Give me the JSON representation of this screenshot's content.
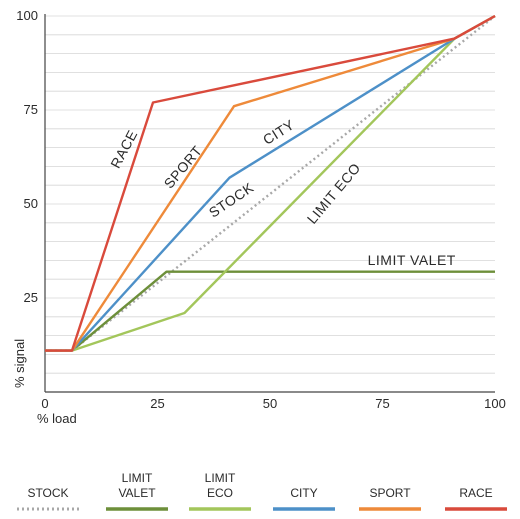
{
  "chart_data": {
    "type": "line",
    "xlabel": "% load",
    "ylabel": "% signal",
    "xlim": [
      0,
      100
    ],
    "ylim": [
      0,
      100
    ],
    "x_ticks": [
      0,
      25,
      50,
      75,
      100
    ],
    "x_tick_labels": [
      "0",
      "25",
      "50",
      "75",
      "100"
    ],
    "y_ticks": [
      25,
      50,
      75,
      100
    ],
    "y_tick_labels": [
      "25",
      "50",
      "75",
      "100"
    ],
    "grid": true,
    "legend_position": "bottom",
    "series": [
      {
        "name": "STOCK",
        "legend_label": "STOCK",
        "color": "#a8a8a8",
        "dash": "dotted",
        "curve_label": "",
        "points": [
          [
            0,
            11
          ],
          [
            6,
            11
          ],
          [
            100,
            100
          ]
        ]
      },
      {
        "name": "LIMIT VALET",
        "legend_label": "LIMIT\nVALET",
        "color": "#6d8f3a",
        "dash": "solid",
        "curve_label": "LIMIT VALET",
        "points": [
          [
            0,
            11
          ],
          [
            6,
            11
          ],
          [
            27,
            32
          ],
          [
            100,
            32
          ]
        ]
      },
      {
        "name": "LIMIT ECO",
        "legend_label": "LIMIT\nECO",
        "color": "#a3c65b",
        "dash": "solid",
        "curve_label": "LIMIT ECO",
        "points": [
          [
            0,
            11
          ],
          [
            6,
            11
          ],
          [
            31,
            21
          ],
          [
            91,
            94
          ],
          [
            100,
            100
          ]
        ]
      },
      {
        "name": "CITY",
        "legend_label": "CITY",
        "color": "#4d90c8",
        "dash": "solid",
        "curve_label": "CITY",
        "points": [
          [
            0,
            11
          ],
          [
            6,
            11
          ],
          [
            41,
            57
          ],
          [
            91,
            94
          ],
          [
            100,
            100
          ]
        ]
      },
      {
        "name": "SPORT",
        "legend_label": "SPORT",
        "color": "#ee8a3a",
        "dash": "solid",
        "curve_label": "SPORT",
        "points": [
          [
            0,
            11
          ],
          [
            6,
            11
          ],
          [
            42,
            76
          ],
          [
            91,
            94
          ],
          [
            100,
            100
          ]
        ]
      },
      {
        "name": "RACE",
        "legend_label": "RACE",
        "color": "#d94a3c",
        "dash": "solid",
        "curve_label": "RACE",
        "points": [
          [
            0,
            11
          ],
          [
            6,
            11
          ],
          [
            24,
            77
          ],
          [
            91,
            94
          ],
          [
            100,
            100
          ]
        ]
      }
    ]
  }
}
